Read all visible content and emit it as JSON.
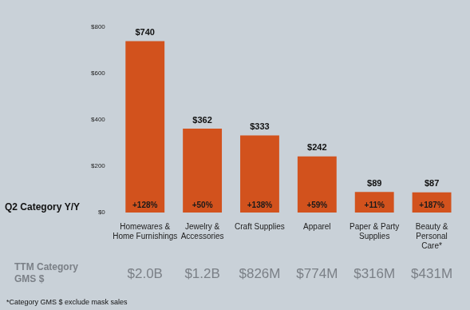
{
  "chart_data": {
    "type": "bar",
    "categories": [
      "Homewares &\nHome Furnishings",
      "Jewelry &\nAccessories",
      "Craft Supplies",
      "Apparel",
      "Paper & Party\nSupplies",
      "Beauty &\nPersonal\nCare*"
    ],
    "values": [
      740,
      362,
      333,
      242,
      89,
      87
    ],
    "value_labels": [
      "$740",
      "$362",
      "$333",
      "$242",
      "$89",
      "$87"
    ],
    "color": "#d2521d",
    "data_labels": true,
    "ylim": [
      0,
      800
    ],
    "yticks": [
      {
        "value": 0,
        "label": "$0"
      },
      {
        "value": 200,
        "label": "$200"
      },
      {
        "value": 400,
        "label": "$400"
      },
      {
        "value": 600,
        "label": "$600"
      },
      {
        "value": 800,
        "label": "$800"
      }
    ],
    "grid": false,
    "yoy_growth": {
      "label": "Q2 Category Y/Y",
      "values": [
        128,
        50,
        138,
        59,
        11,
        187
      ],
      "value_labels": [
        "+128%",
        "+50%",
        "+138%",
        "+59%",
        "+11%",
        "+187%"
      ]
    },
    "ttm_gms": {
      "label": "TTM Category\nGMS $",
      "values": [
        2000,
        1200,
        826,
        774,
        316,
        431
      ],
      "value_labels": [
        "$2.0B",
        "$1.2B",
        "$826M",
        "$774M",
        "$316M",
        "$431M"
      ]
    },
    "footnote": "*Category GMS $ exclude mask sales"
  }
}
